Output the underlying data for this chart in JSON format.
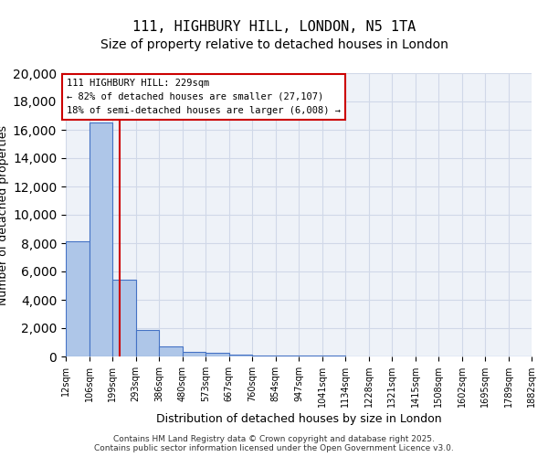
{
  "title": "111, HIGHBURY HILL, LONDON, N5 1TA",
  "subtitle": "Size of property relative to detached houses in London",
  "xlabel": "Distribution of detached houses by size in London",
  "ylabel": "Number of detached properties",
  "bin_edges": [
    12,
    106,
    199,
    293,
    386,
    480,
    573,
    667,
    760,
    854,
    947,
    1041,
    1134,
    1228,
    1321,
    1415,
    1508,
    1602,
    1695,
    1789,
    1882
  ],
  "bin_labels": [
    "12sqm",
    "106sqm",
    "199sqm",
    "293sqm",
    "386sqm",
    "480sqm",
    "573sqm",
    "667sqm",
    "760sqm",
    "854sqm",
    "947sqm",
    "1041sqm",
    "1134sqm",
    "1228sqm",
    "1321sqm",
    "1415sqm",
    "1508sqm",
    "1602sqm",
    "1695sqm",
    "1789sqm",
    "1882sqm"
  ],
  "counts": [
    8100,
    16500,
    5400,
    1900,
    700,
    300,
    250,
    100,
    80,
    60,
    50,
    40,
    30,
    25,
    20,
    15,
    10,
    8,
    6,
    4
  ],
  "bar_color": "#aec6e8",
  "bar_edge_color": "#4472c4",
  "grid_color": "#d0d8e8",
  "bg_color": "#eef2f8",
  "property_size": 229,
  "red_line_color": "#cc0000",
  "annotation_text": "111 HIGHBURY HILL: 229sqm\n← 82% of detached houses are smaller (27,107)\n18% of semi-detached houses are larger (6,008) →",
  "annotation_box_color": "#cc0000",
  "ylim": [
    0,
    20000
  ],
  "yticks": [
    0,
    2000,
    4000,
    6000,
    8000,
    10000,
    12000,
    14000,
    16000,
    18000,
    20000
  ],
  "footer_text": "Contains HM Land Registry data © Crown copyright and database right 2025.\nContains public sector information licensed under the Open Government Licence v3.0.",
  "title_fontsize": 11,
  "subtitle_fontsize": 10,
  "ylabel_fontsize": 9,
  "xlabel_fontsize": 9
}
